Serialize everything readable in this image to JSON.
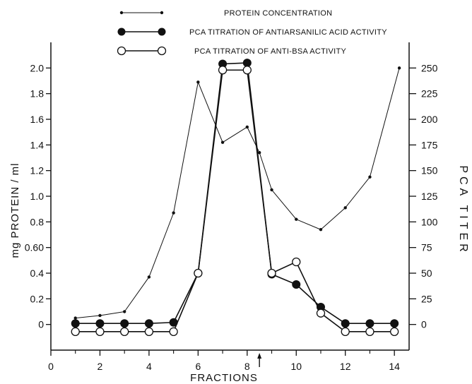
{
  "chart_data": {
    "type": "line",
    "title": "",
    "xlabel": "FRACTIONS",
    "ylabel_left": "mg PROTEIN / ml",
    "ylabel_right": "PCA TITER",
    "xlim": [
      0,
      14.6
    ],
    "ylim_left": [
      -0.2,
      2.2
    ],
    "ylim_right": [
      -25,
      275
    ],
    "grid": false,
    "legend_position": "top-center",
    "x_ticks": [
      {
        "value": 0,
        "label": "0"
      },
      {
        "value": 2,
        "label": "2"
      },
      {
        "value": 4,
        "label": "4"
      },
      {
        "value": 6,
        "label": "6"
      },
      {
        "value": 8,
        "label": "8"
      },
      {
        "value": 10,
        "label": "10"
      },
      {
        "value": 12,
        "label": "12"
      },
      {
        "value": 14,
        "label": "14"
      }
    ],
    "y_left_ticks": [
      {
        "value": 2.0,
        "label": "2.0"
      },
      {
        "value": 1.8,
        "label": "1.8"
      },
      {
        "value": 1.6,
        "label": "1.6"
      },
      {
        "value": 1.4,
        "label": "1.4"
      },
      {
        "value": 1.2,
        "label": "1.2"
      },
      {
        "value": 1.0,
        "label": "1.0"
      },
      {
        "value": 0.8,
        "label": "0.8"
      },
      {
        "value": 0.6,
        "label": "0.60"
      },
      {
        "value": 0.4,
        "label": "0.4"
      },
      {
        "value": 0.2,
        "label": "0.2"
      },
      {
        "value": 0,
        "label": "0"
      }
    ],
    "y_right_ticks": [
      {
        "value": 250,
        "label": "250"
      },
      {
        "value": 225,
        "label": "225"
      },
      {
        "value": 200,
        "label": "200"
      },
      {
        "value": 175,
        "label": "175"
      },
      {
        "value": 150,
        "label": "150"
      },
      {
        "value": 125,
        "label": "125"
      },
      {
        "value": 100,
        "label": "100"
      },
      {
        "value": 75,
        "label": "75"
      },
      {
        "value": 50,
        "label": "50"
      },
      {
        "value": 25,
        "label": "25"
      },
      {
        "value": 0,
        "label": "0"
      }
    ],
    "arrow_marker_x": 8.5,
    "series": [
      {
        "name": "PROTEIN CONCENTRATION",
        "axis": "left",
        "marker": "small-dot",
        "x": [
          1,
          2,
          3,
          4,
          5,
          6,
          7,
          8,
          8.5,
          9,
          10,
          11,
          12,
          13,
          14.2
        ],
        "y": [
          0.05,
          0.07,
          0.1,
          0.37,
          0.87,
          1.89,
          1.42,
          1.54,
          1.34,
          1.05,
          0.82,
          0.74,
          0.91,
          1.15,
          2.0
        ]
      },
      {
        "name": "PCA TITRATION OF ANTIARSANILIC ACID ACTIVITY",
        "axis": "right",
        "marker": "filled-circle",
        "x": [
          1,
          2,
          3,
          4,
          5,
          6,
          7,
          8,
          9,
          10,
          11,
          12,
          13,
          14
        ],
        "y": [
          1,
          1,
          1,
          1,
          2,
          50,
          254,
          255,
          49,
          39,
          17,
          1,
          1,
          1
        ]
      },
      {
        "name": "PCA TITRATION OF ANTI-BSA ACTIVITY",
        "axis": "right",
        "marker": "open-circle",
        "x": [
          1,
          2,
          3,
          4,
          5,
          6,
          7,
          8,
          9,
          10,
          11,
          12,
          13,
          14
        ],
        "y": [
          -7,
          -7,
          -7,
          -7,
          -7,
          50,
          248,
          248,
          50,
          61,
          11,
          -7,
          -7,
          -7
        ]
      }
    ]
  }
}
